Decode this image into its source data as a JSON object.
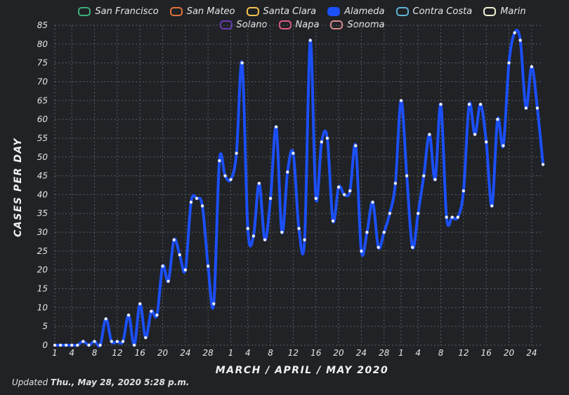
{
  "legend": [
    {
      "name": "San Francisco",
      "color": "#3fae7a"
    },
    {
      "name": "San Mateo",
      "color": "#e0703a"
    },
    {
      "name": "Santa Clara",
      "color": "#f4c24c"
    },
    {
      "name": "Alameda",
      "color": "#1b4ff7",
      "active": true
    },
    {
      "name": "Contra Costa",
      "color": "#5fb6d6"
    },
    {
      "name": "Marin",
      "color": "#f2f0d2"
    },
    {
      "name": "Solano",
      "color": "#6a3bb5"
    },
    {
      "name": "Napa",
      "color": "#e05a80"
    },
    {
      "name": "Sonoma",
      "color": "#d68a8a"
    }
  ],
  "footer": {
    "prefix": "Updated ",
    "timestamp": "Thu., May 28, 2020 5:28 p.m."
  },
  "chart_data": {
    "type": "line",
    "ylabel": "CASES PER DAY",
    "xlabel": "MARCH / APRIL / MAY 2020",
    "ylim": [
      0,
      85
    ],
    "yticks": [
      0,
      5,
      10,
      15,
      20,
      25,
      30,
      35,
      40,
      45,
      50,
      55,
      60,
      65,
      70,
      75,
      80,
      85
    ],
    "xticks": [
      {
        "day": 1,
        "label": "1"
      },
      {
        "day": 4,
        "label": "4"
      },
      {
        "day": 8,
        "label": "8"
      },
      {
        "day": 12,
        "label": "12"
      },
      {
        "day": 16,
        "label": "16"
      },
      {
        "day": 20,
        "label": "20"
      },
      {
        "day": 24,
        "label": "24"
      },
      {
        "day": 28,
        "label": "28"
      },
      {
        "day": 32,
        "label": "1"
      },
      {
        "day": 35,
        "label": "4"
      },
      {
        "day": 39,
        "label": "8"
      },
      {
        "day": 43,
        "label": "12"
      },
      {
        "day": 47,
        "label": "16"
      },
      {
        "day": 51,
        "label": "20"
      },
      {
        "day": 55,
        "label": "24"
      },
      {
        "day": 59,
        "label": "28"
      },
      {
        "day": 62,
        "label": "1"
      },
      {
        "day": 65,
        "label": "4"
      },
      {
        "day": 69,
        "label": "8"
      },
      {
        "day": 73,
        "label": "12"
      },
      {
        "day": 77,
        "label": "16"
      },
      {
        "day": 81,
        "label": "20"
      },
      {
        "day": 85,
        "label": "24"
      }
    ],
    "grid": true,
    "legend_position": "top",
    "series": [
      {
        "name": "Alameda",
        "color": "#1b4ff7",
        "start_date": "2020-03-01",
        "values": [
          0,
          0,
          0,
          0,
          0,
          1,
          0,
          1,
          0,
          7,
          1,
          1,
          1,
          8,
          0,
          11,
          2,
          9,
          8,
          21,
          17,
          28,
          24,
          20,
          38,
          39,
          37,
          21,
          11,
          49,
          45,
          44,
          51,
          75,
          31,
          29,
          43,
          28,
          39,
          58,
          30,
          46,
          51,
          31,
          28,
          81,
          39,
          54,
          55,
          33,
          42,
          40,
          41,
          53,
          25,
          30,
          38,
          26,
          30,
          35,
          43,
          65,
          45,
          26,
          35,
          45,
          56,
          44,
          64,
          34,
          34,
          34,
          41,
          64,
          56,
          64,
          54,
          37,
          60,
          53,
          75,
          83,
          81,
          63,
          74,
          63,
          48
        ]
      }
    ]
  }
}
